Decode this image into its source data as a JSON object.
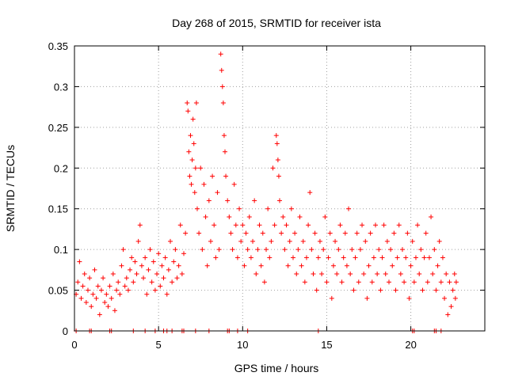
{
  "chart_data": {
    "type": "scatter",
    "title": "Day 268 of 2015, SRMTID for receiver ista",
    "xlabel": "GPS time / hours",
    "ylabel": "SRMTID / TECUs",
    "xlim": [
      0,
      24.4
    ],
    "ylim": [
      0,
      0.35
    ],
    "x_ticks": [
      0,
      5,
      10,
      15,
      20
    ],
    "y_ticks": [
      0,
      0.05,
      0.1,
      0.15,
      0.2,
      0.25,
      0.3,
      0.35
    ],
    "x_tick_labels": [
      "0",
      "5",
      "10",
      "15",
      "20"
    ],
    "y_tick_labels": [
      "0",
      "0.05",
      "0.1",
      "0.15",
      "0.2",
      "0.25",
      "0.3",
      "0.35"
    ],
    "grid": true,
    "marker": "plus",
    "marker_color": "#ff0000",
    "points": [
      [
        0.1,
        0.045
      ],
      [
        0.2,
        0.06
      ],
      [
        0.3,
        0.085
      ],
      [
        0.4,
        0.04
      ],
      [
        0.5,
        0.055
      ],
      [
        0.6,
        0.07
      ],
      [
        0.7,
        0.035
      ],
      [
        0.8,
        0.05
      ],
      [
        0.9,
        0.065
      ],
      [
        1.0,
        0.03
      ],
      [
        1.1,
        0.045
      ],
      [
        1.2,
        0.075
      ],
      [
        1.3,
        0.04
      ],
      [
        1.4,
        0.055
      ],
      [
        1.5,
        0.02
      ],
      [
        1.6,
        0.05
      ],
      [
        1.7,
        0.065
      ],
      [
        1.8,
        0.035
      ],
      [
        1.9,
        0.045
      ],
      [
        2.0,
        0.03
      ],
      [
        2.1,
        0.055
      ],
      [
        2.2,
        0.04
      ],
      [
        2.3,
        0.07
      ],
      [
        2.4,
        0.025
      ],
      [
        2.5,
        0.05
      ],
      [
        2.6,
        0.06
      ],
      [
        2.7,
        0.045
      ],
      [
        2.8,
        0.08
      ],
      [
        2.9,
        0.1
      ],
      [
        3.0,
        0.055
      ],
      [
        3.1,
        0.065
      ],
      [
        3.2,
        0.05
      ],
      [
        3.3,
        0.075
      ],
      [
        3.4,
        0.09
      ],
      [
        3.5,
        0.06
      ],
      [
        3.6,
        0.085
      ],
      [
        3.7,
        0.07
      ],
      [
        3.8,
        0.11
      ],
      [
        3.9,
        0.13
      ],
      [
        4.0,
        0.08
      ],
      [
        4.1,
        0.065
      ],
      [
        4.2,
        0.09
      ],
      [
        4.3,
        0.045
      ],
      [
        4.4,
        0.075
      ],
      [
        4.5,
        0.1
      ],
      [
        4.6,
        0.06
      ],
      [
        4.7,
        0.085
      ],
      [
        4.8,
        0.05
      ],
      [
        4.9,
        0.07
      ],
      [
        5.0,
        0.095
      ],
      [
        5.1,
        0.055
      ],
      [
        5.2,
        0.08
      ],
      [
        5.3,
        0.065
      ],
      [
        5.4,
        0.09
      ],
      [
        5.5,
        0.045
      ],
      [
        5.6,
        0.075
      ],
      [
        5.7,
        0.11
      ],
      [
        5.8,
        0.06
      ],
      [
        5.9,
        0.085
      ],
      [
        6.0,
        0.1
      ],
      [
        6.1,
        0.065
      ],
      [
        6.2,
        0.08
      ],
      [
        6.3,
        0.13
      ],
      [
        6.4,
        0.07
      ],
      [
        6.5,
        0.095
      ],
      [
        6.6,
        0.12
      ],
      [
        6.7,
        0.28
      ],
      [
        6.75,
        0.27
      ],
      [
        6.8,
        0.22
      ],
      [
        6.85,
        0.19
      ],
      [
        6.9,
        0.24
      ],
      [
        6.95,
        0.18
      ],
      [
        7.0,
        0.21
      ],
      [
        7.05,
        0.26
      ],
      [
        7.1,
        0.23
      ],
      [
        7.15,
        0.17
      ],
      [
        7.2,
        0.2
      ],
      [
        7.25,
        0.28
      ],
      [
        7.3,
        0.15
      ],
      [
        7.4,
        0.12
      ],
      [
        7.5,
        0.2
      ],
      [
        7.6,
        0.1
      ],
      [
        7.7,
        0.18
      ],
      [
        7.8,
        0.14
      ],
      [
        7.9,
        0.08
      ],
      [
        8.0,
        0.16
      ],
      [
        8.1,
        0.11
      ],
      [
        8.2,
        0.19
      ],
      [
        8.3,
        0.13
      ],
      [
        8.4,
        0.09
      ],
      [
        8.5,
        0.17
      ],
      [
        8.6,
        0.1
      ],
      [
        8.7,
        0.34
      ],
      [
        8.75,
        0.32
      ],
      [
        8.8,
        0.3
      ],
      [
        8.85,
        0.28
      ],
      [
        8.9,
        0.24
      ],
      [
        8.95,
        0.22
      ],
      [
        9.0,
        0.19
      ],
      [
        9.1,
        0.16
      ],
      [
        9.2,
        0.14
      ],
      [
        9.3,
        0.12
      ],
      [
        9.4,
        0.1
      ],
      [
        9.5,
        0.18
      ],
      [
        9.6,
        0.13
      ],
      [
        9.7,
        0.09
      ],
      [
        9.8,
        0.15
      ],
      [
        9.9,
        0.11
      ],
      [
        10.0,
        0.13
      ],
      [
        10.1,
        0.08
      ],
      [
        10.2,
        0.12
      ],
      [
        10.3,
        0.1
      ],
      [
        10.4,
        0.14
      ],
      [
        10.5,
        0.09
      ],
      [
        10.6,
        0.11
      ],
      [
        10.7,
        0.16
      ],
      [
        10.8,
        0.07
      ],
      [
        10.9,
        0.1
      ],
      [
        11.0,
        0.13
      ],
      [
        11.1,
        0.08
      ],
      [
        11.2,
        0.12
      ],
      [
        11.3,
        0.06
      ],
      [
        11.4,
        0.1
      ],
      [
        11.5,
        0.15
      ],
      [
        11.6,
        0.09
      ],
      [
        11.7,
        0.11
      ],
      [
        11.8,
        0.2
      ],
      [
        11.9,
        0.13
      ],
      [
        12.0,
        0.24
      ],
      [
        12.05,
        0.23
      ],
      [
        12.1,
        0.21
      ],
      [
        12.15,
        0.19
      ],
      [
        12.2,
        0.16
      ],
      [
        12.3,
        0.12
      ],
      [
        12.4,
        0.14
      ],
      [
        12.5,
        0.1
      ],
      [
        12.6,
        0.13
      ],
      [
        12.7,
        0.08
      ],
      [
        12.8,
        0.11
      ],
      [
        12.9,
        0.15
      ],
      [
        13.0,
        0.09
      ],
      [
        13.1,
        0.12
      ],
      [
        13.2,
        0.07
      ],
      [
        13.3,
        0.1
      ],
      [
        13.4,
        0.14
      ],
      [
        13.5,
        0.08
      ],
      [
        13.6,
        0.11
      ],
      [
        13.7,
        0.06
      ],
      [
        13.8,
        0.09
      ],
      [
        13.9,
        0.13
      ],
      [
        14.0,
        0.17
      ],
      [
        14.1,
        0.1
      ],
      [
        14.2,
        0.07
      ],
      [
        14.3,
        0.12
      ],
      [
        14.4,
        0.05
      ],
      [
        14.5,
        0.09
      ],
      [
        14.6,
        0.11
      ],
      [
        14.7,
        0.07
      ],
      [
        14.8,
        0.1
      ],
      [
        14.9,
        0.14
      ],
      [
        15.0,
        0.06
      ],
      [
        15.1,
        0.09
      ],
      [
        15.2,
        0.12
      ],
      [
        15.3,
        0.04
      ],
      [
        15.4,
        0.08
      ],
      [
        15.5,
        0.11
      ],
      [
        15.6,
        0.07
      ],
      [
        15.7,
        0.1
      ],
      [
        15.8,
        0.13
      ],
      [
        15.9,
        0.06
      ],
      [
        16.0,
        0.09
      ],
      [
        16.1,
        0.12
      ],
      [
        16.2,
        0.08
      ],
      [
        16.3,
        0.15
      ],
      [
        16.4,
        0.07
      ],
      [
        16.5,
        0.1
      ],
      [
        16.6,
        0.05
      ],
      [
        16.7,
        0.09
      ],
      [
        16.8,
        0.12
      ],
      [
        16.9,
        0.06
      ],
      [
        17.0,
        0.1
      ],
      [
        17.1,
        0.13
      ],
      [
        17.2,
        0.07
      ],
      [
        17.3,
        0.11
      ],
      [
        17.4,
        0.04
      ],
      [
        17.5,
        0.08
      ],
      [
        17.6,
        0.12
      ],
      [
        17.7,
        0.06
      ],
      [
        17.8,
        0.09
      ],
      [
        17.9,
        0.13
      ],
      [
        18.0,
        0.07
      ],
      [
        18.1,
        0.1
      ],
      [
        18.2,
        0.05
      ],
      [
        18.3,
        0.09
      ],
      [
        18.4,
        0.13
      ],
      [
        18.5,
        0.07
      ],
      [
        18.6,
        0.11
      ],
      [
        18.7,
        0.06
      ],
      [
        18.8,
        0.1
      ],
      [
        18.9,
        0.08
      ],
      [
        19.0,
        0.12
      ],
      [
        19.1,
        0.05
      ],
      [
        19.2,
        0.09
      ],
      [
        19.3,
        0.13
      ],
      [
        19.4,
        0.07
      ],
      [
        19.5,
        0.1
      ],
      [
        19.6,
        0.06
      ],
      [
        19.7,
        0.09
      ],
      [
        19.8,
        0.12
      ],
      [
        19.9,
        0.04
      ],
      [
        20.0,
        0.08
      ],
      [
        20.1,
        0.11
      ],
      [
        20.2,
        0.06
      ],
      [
        20.3,
        0.09
      ],
      [
        20.4,
        0.13
      ],
      [
        20.5,
        0.07
      ],
      [
        20.6,
        0.1
      ],
      [
        20.7,
        0.05
      ],
      [
        20.8,
        0.09
      ],
      [
        20.9,
        0.12
      ],
      [
        21.0,
        0.06
      ],
      [
        21.1,
        0.09
      ],
      [
        21.2,
        0.14
      ],
      [
        21.3,
        0.07
      ],
      [
        21.4,
        0.1
      ],
      [
        21.5,
        0.05
      ],
      [
        21.6,
        0.08
      ],
      [
        21.7,
        0.11
      ],
      [
        21.8,
        0.06
      ],
      [
        21.9,
        0.09
      ],
      [
        22.0,
        0.04
      ],
      [
        22.1,
        0.07
      ],
      [
        22.2,
        0.02
      ],
      [
        22.3,
        0.06
      ],
      [
        22.4,
        0.03
      ],
      [
        22.5,
        0.05
      ],
      [
        22.6,
        0.07
      ],
      [
        22.65,
        0.04
      ],
      [
        22.7,
        0.06
      ]
    ],
    "zero_points_x": [
      0.1,
      0.9,
      1.0,
      2.1,
      2.2,
      3.5,
      4.2,
      4.8,
      5.3,
      5.5,
      5.8,
      6.4,
      6.5,
      7.2,
      8.0,
      9.1,
      9.2,
      9.7,
      10.3,
      14.5,
      20.1,
      20.2,
      21.4,
      21.5,
      21.8
    ]
  }
}
